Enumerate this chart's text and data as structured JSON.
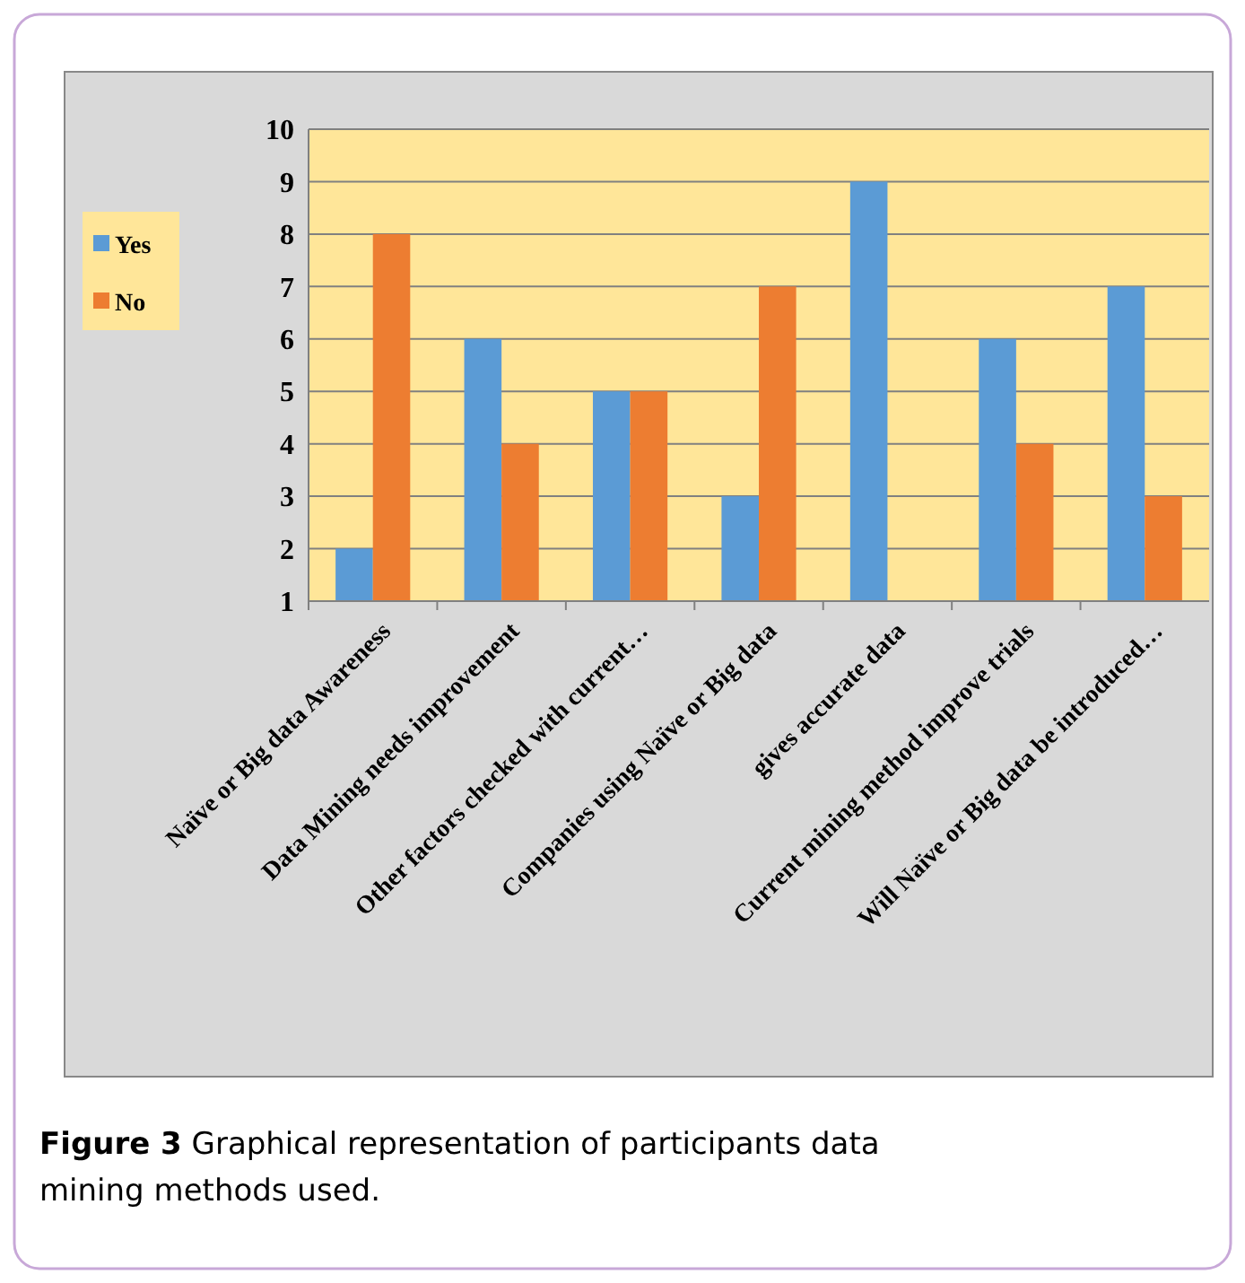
{
  "chart_data": {
    "type": "bar",
    "categories": [
      "Naïve or Big data Awareness",
      "Data Mining needs improvement",
      "Other factors checked with current…",
      "Companies using Naïve or Big data",
      "gives accurate data",
      "Current mining method improve trials",
      "Will Naïve or Big data be introduced…"
    ],
    "series": [
      {
        "name": "Yes",
        "color": "#5b9bd5",
        "values": [
          2,
          6,
          5,
          3,
          9,
          6,
          7
        ]
      },
      {
        "name": "No",
        "color": "#ed7d31",
        "values": [
          8,
          4,
          5,
          7,
          null,
          4,
          3
        ]
      }
    ],
    "ylim": [
      1,
      10
    ],
    "yticks": [
      1,
      2,
      3,
      4,
      5,
      6,
      7,
      8,
      9,
      10
    ],
    "grid": "y",
    "legend": "left",
    "annotations": [
      "Figure 3 Graphical representation of participants data mining methods used."
    ]
  }
}
